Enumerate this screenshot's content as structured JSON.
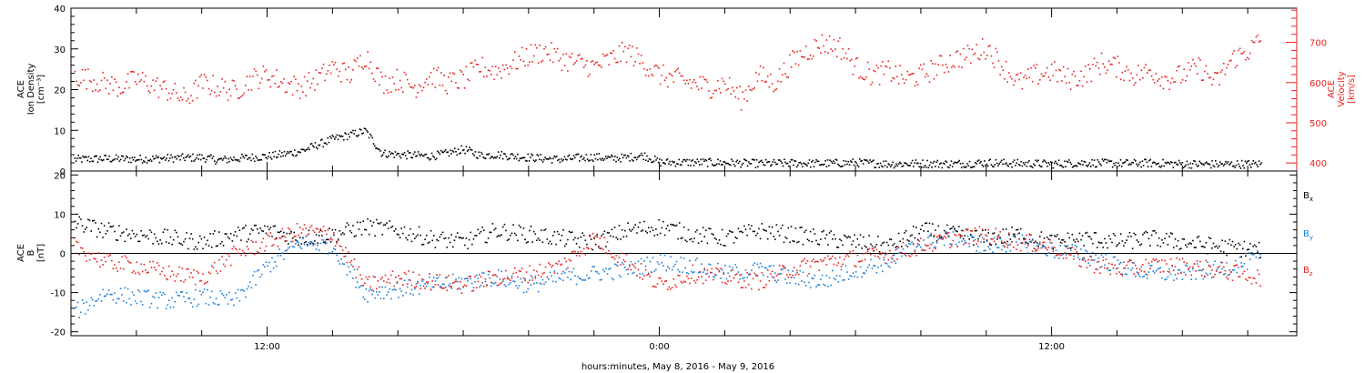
{
  "chart_data": [
    {
      "type": "scatter",
      "panel": "top",
      "title": "",
      "ylabel_lines": [
        "ACE",
        "Ion Density",
        "[cm⁻³]"
      ],
      "ylim": [
        0,
        40
      ],
      "yticks": [
        "0",
        "10",
        "20",
        "30",
        "40"
      ],
      "y2label_lines": [
        "ACE",
        "Velocity",
        "[km/s]"
      ],
      "y2lim": [
        380,
        785
      ],
      "y2ticks": [
        "400",
        "500",
        "600",
        "700"
      ],
      "y2_color": "#e8221e",
      "series": [
        {
          "axis": "left",
          "color": "#000000",
          "x_hours": [
            6.1,
            7,
            8,
            9,
            10,
            10.5,
            11,
            11.5,
            12,
            12.5,
            13,
            13.5,
            14,
            14.5,
            15,
            15.5,
            16,
            16.5,
            17,
            17.5,
            18,
            18.5,
            19,
            19.5,
            20,
            20.5,
            21,
            21.5,
            22,
            22.5,
            23,
            23.5,
            24,
            25,
            26,
            27,
            28,
            29,
            30,
            31,
            32,
            33,
            34,
            35,
            36,
            37,
            38,
            39,
            40,
            41,
            42.4
          ],
          "values": [
            3,
            3.2,
            3.1,
            3.3,
            3.5,
            2.8,
            3.2,
            3.5,
            3.8,
            4.3,
            5,
            6.5,
            8,
            9,
            10,
            4.5,
            4.2,
            4,
            3.8,
            4.5,
            5.5,
            4,
            4.2,
            3.8,
            3.5,
            3.2,
            3,
            3.4,
            3.6,
            3.2,
            3.5,
            4,
            2.3,
            2.3,
            2.2,
            2,
            2.1,
            2,
            2.2,
            1.9,
            2,
            1.9,
            2.2,
            2,
            1.9,
            2.2,
            2,
            2.1,
            1.9,
            1.8,
            1.9
          ]
        },
        {
          "axis": "right",
          "color": "#e8221e",
          "x_hours": [
            6.1,
            7,
            7.5,
            8,
            8.5,
            9,
            9.5,
            10,
            10.5,
            11,
            11.5,
            12,
            12.5,
            13,
            13.5,
            14,
            14.5,
            15,
            15.5,
            16,
            16.5,
            17,
            17.5,
            18,
            18.5,
            19,
            19.5,
            20,
            20.5,
            21,
            21.5,
            22,
            22.5,
            23,
            23.5,
            24,
            24.5,
            25,
            25.5,
            26,
            26.5,
            27,
            27.5,
            28,
            28.5,
            29,
            29.5,
            30,
            30.5,
            31,
            31.5,
            32,
            32.5,
            33,
            33.5,
            34,
            34.5,
            35,
            35.5,
            36,
            36.5,
            37,
            37.5,
            38,
            38.5,
            39,
            39.5,
            40,
            40.5,
            41,
            41.5,
            42,
            42.4
          ],
          "values": [
            620,
            600,
            590,
            610,
            595,
            580,
            560,
            600,
            590,
            580,
            610,
            620,
            600,
            590,
            610,
            640,
            620,
            670,
            600,
            610,
            590,
            620,
            600,
            610,
            640,
            630,
            650,
            670,
            680,
            660,
            650,
            640,
            660,
            680,
            650,
            620,
            610,
            600,
            590,
            600,
            560,
            620,
            600,
            650,
            680,
            700,
            690,
            640,
            620,
            630,
            610,
            620,
            640,
            660,
            670,
            690,
            640,
            600,
            620,
            630,
            610,
            620,
            650,
            640,
            620,
            630,
            610,
            620,
            640,
            600,
            660,
            680,
            710
          ]
        }
      ]
    },
    {
      "type": "scatter",
      "panel": "bottom",
      "title": "",
      "ylabel_lines": [
        "ACE",
        "B",
        "[nT]"
      ],
      "ylim": [
        -21,
        21
      ],
      "yticks": [
        "-20",
        "-10",
        "0",
        "10",
        "20"
      ],
      "zero_line": true,
      "series": [
        {
          "name": "Bx",
          "legend_main": "B",
          "legend_sub": "x",
          "color": "#000000",
          "x_hours": [
            6.1,
            7,
            8,
            9,
            10,
            11,
            12,
            13,
            14,
            15,
            16,
            17,
            18,
            19,
            20,
            21,
            22,
            23,
            24,
            25,
            26,
            27,
            28,
            29,
            30,
            31,
            32,
            33,
            34,
            35,
            36,
            37,
            38,
            39,
            40,
            41,
            42.4
          ],
          "values": [
            8,
            6,
            5,
            4,
            3,
            5,
            6,
            4,
            5,
            7,
            6,
            4,
            3,
            6,
            5,
            4,
            3,
            6,
            7,
            5,
            4,
            6,
            5,
            4,
            3,
            2,
            6,
            5,
            4,
            5,
            3,
            4,
            3,
            4,
            3,
            2,
            1
          ]
        },
        {
          "name": "By",
          "legend_main": "B",
          "legend_sub": "y",
          "color": "#1a7fd8",
          "x_hours": [
            6.1,
            7,
            8,
            9,
            10,
            11,
            12,
            13,
            14,
            15,
            16,
            17,
            18,
            19,
            20,
            21,
            22,
            23,
            24,
            25,
            26,
            27,
            28,
            29,
            30,
            31,
            32,
            33,
            34,
            35,
            36,
            37,
            38,
            39,
            40,
            41,
            42.4
          ],
          "values": [
            -15,
            -10,
            -11,
            -12,
            -11,
            -12,
            -3,
            3,
            2,
            -10,
            -9,
            -8,
            -7,
            -6,
            -8,
            -6,
            -5,
            -4,
            -2,
            -3,
            -5,
            -4,
            -6,
            -7,
            -4,
            -2,
            3,
            4,
            2,
            3,
            1,
            0,
            -3,
            -5,
            -5,
            -4,
            -1
          ]
        },
        {
          "name": "Bz",
          "legend_main": "B",
          "legend_sub": "z",
          "color": "#e8221e",
          "x_hours": [
            6.1,
            7,
            8,
            9,
            10,
            11,
            12,
            13,
            14,
            15,
            16,
            17,
            18,
            19,
            20,
            21,
            22,
            23,
            24,
            25,
            26,
            27,
            28,
            29,
            30,
            31,
            32,
            33,
            34,
            35,
            36,
            37,
            38,
            39,
            40,
            41,
            42.4
          ],
          "values": [
            2,
            -2,
            -3,
            -5,
            -6,
            0,
            3,
            6,
            5,
            -8,
            -6,
            -7,
            -8,
            -6,
            -5,
            -3,
            4,
            -2,
            -8,
            -5,
            -6,
            -7,
            -4,
            -2,
            -1,
            0,
            2,
            4,
            5,
            3,
            2,
            -2,
            -4,
            -3,
            -3,
            -4,
            -6
          ]
        }
      ]
    }
  ],
  "x_axis": {
    "xlim_hours": [
      6,
      43.5
    ],
    "label": "hours:minutes, May  8, 2016 - May  9, 2016",
    "tick_labels": [
      {
        "hour": 12,
        "text": "12:00"
      },
      {
        "hour": 24,
        "text": "0:00"
      },
      {
        "hour": 36,
        "text": "12:00"
      }
    ],
    "major_tick_step_hours": 2
  },
  "colors": {
    "axes": "#000000",
    "background": "#ffffff"
  }
}
